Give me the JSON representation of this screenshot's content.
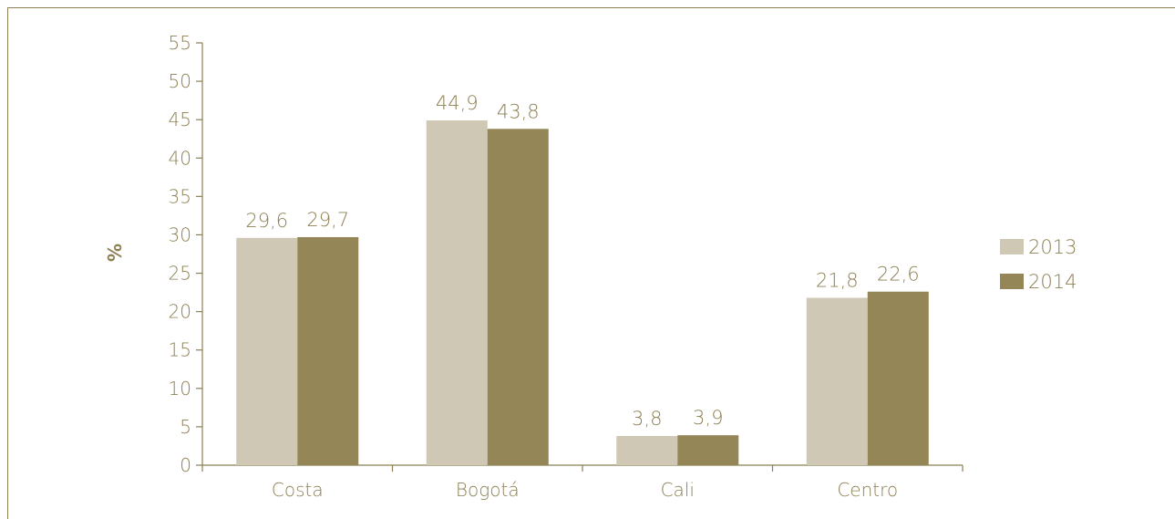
{
  "chart_data": {
    "type": "bar",
    "categories": [
      "Costa",
      "Bogotá",
      "Cali",
      "Centro"
    ],
    "series": [
      {
        "name": "2013",
        "values": [
          29.6,
          44.9,
          3.8,
          21.8
        ],
        "labels": [
          "29,6",
          "44,9",
          "3,8",
          "21,8"
        ],
        "color": "#cfc8b4"
      },
      {
        "name": "2014",
        "values": [
          29.7,
          43.8,
          3.9,
          22.6
        ],
        "labels": [
          "29,7",
          "43,8",
          "3,9",
          "22,6"
        ],
        "color": "#948657"
      }
    ],
    "ylabel": "%",
    "xlabel": "",
    "title": "",
    "ylim": [
      0,
      55
    ],
    "yticks": [
      0,
      5,
      10,
      15,
      20,
      25,
      30,
      35,
      40,
      45,
      50,
      55
    ],
    "grid": false,
    "legend_position": "right"
  },
  "colors": {
    "axis": "#8c7f52",
    "text": "#8c7f52"
  }
}
